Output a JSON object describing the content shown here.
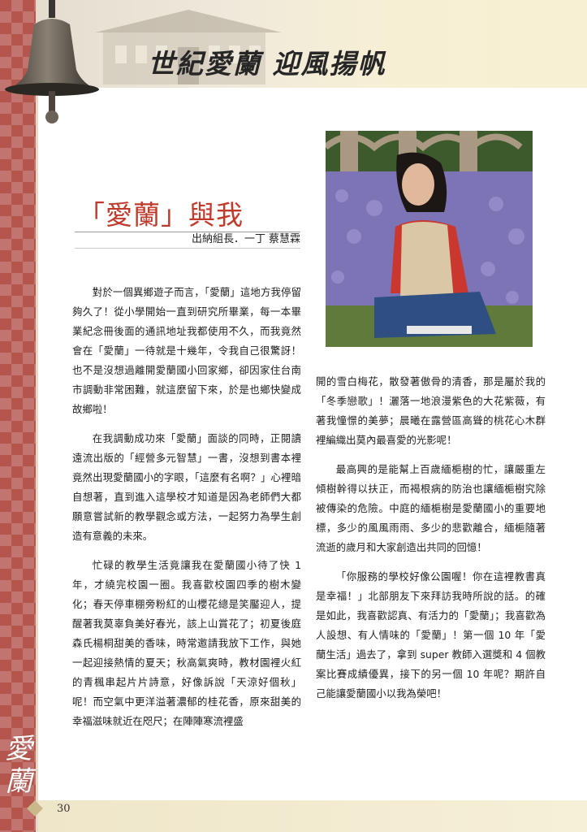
{
  "header": {
    "title": "世紀愛蘭 迎風揚帆"
  },
  "article": {
    "title": "「愛蘭」與我",
    "byline_role": "出納組長．一丁",
    "byline_name": "蔡慧霖"
  },
  "left_column": {
    "paragraphs": [
      "對於一個異鄉遊子而言，「愛蘭」這地方我停留夠久了！從小學開始一直到研究所畢業，每一本畢業紀念冊後面的通訊地址我都使用不久，而我竟然會在「愛蘭」一待就是十幾年，令我自己很驚訝！也不是沒想過離開愛蘭國小回家鄉，卻因家住台南市調動非常困難，就這麼留下來，於是也鄉快變成故鄉啦！",
      "在我調動成功來「愛蘭」面談的同時，正閱讀遠流出版的「經營多元智慧」一書，沒想到書本裡竟然出現愛蘭國小的字眼，「這麼有名啊？」心裡暗自想著，直到進入這學校才知道是因為老師們大都願意嘗試新的教學觀念或方法，一起努力為學生創造有意義的未來。",
      "忙碌的教學生活竟讓我在愛蘭國小待了快 1 年，才繞完校園一圈。我喜歡校園四季的樹木變化；春天停車棚旁粉紅的山櫻花總是笑靨迎人，提醒著我莫辜負美好春光，該上山賞花了；初夏後庭森氏楊桐甜美的香味，時常邀請我放下工作，與她一起迎接熱情的夏天；秋高氣爽時，教材園裡火紅的青楓串起片片詩意，好像訴說「天涼好個秋」呢！而空氣中更洋溢著濃郁的桂花香，原來甜美的幸福滋味就近在咫尺；在陣陣寒流裡盛"
    ]
  },
  "right_column": {
    "paragraphs": [
      "開的雪白梅花，散發著傲骨的清香，那是屬於我的「冬季戀歌」！灑落一地浪漫紫色的大花紫薇，有著我憧憬的美夢；晨曦在露營區高聳的桃花心木群裡編織出莫內最喜愛的光影呢！",
      "最高興的是能幫上百歲緬梔樹的忙，讓嚴重左傾樹幹得以扶正，而褐根病的防治也讓緬梔樹究除被傳染的危險。中庭的緬梔樹是愛蘭國小的重要地標，多少的風風雨雨、多少的悲歡離合，緬梔隨著流逝的歲月和大家創造出共同的回憶！",
      "「你服務的學校好像公園喔！你在這裡教書真是幸福！」北部朋友下來拜訪我時所說的話。的確是如此，我喜歡認真、有活力的「愛蘭」；我喜歡為人設想、有人情味的「愛蘭」！第一個 10 年「愛蘭生活」過去了，拿到 super 教師入選獎和 4 個教案比賽成績優異，接下的另一個 10 年呢？期許自己能讓愛蘭國小以我為榮吧！"
    ]
  },
  "footer": {
    "page_number": "30",
    "corner_text": "愛蘭"
  },
  "colors": {
    "strip": "#b5564e",
    "title_red": "#c0392b",
    "header_bg": "#f6efd5"
  }
}
